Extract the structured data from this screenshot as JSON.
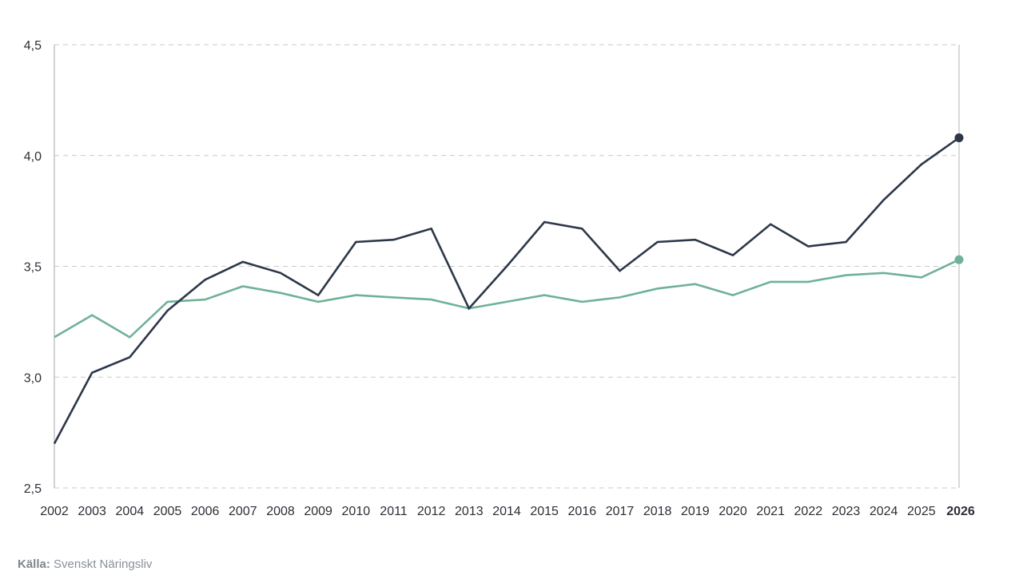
{
  "source": {
    "label": "Källa:",
    "text": "Svenskt Näringsliv"
  },
  "colors": {
    "series_a": "#2c3748",
    "series_b": "#6fb298",
    "grid": "#c9c9c9",
    "axis": "#b5b5b5",
    "text": "#2b2f36"
  },
  "chart_data": {
    "type": "line",
    "ylim": [
      2.5,
      4.5
    ],
    "yticks": [
      "2,5",
      "3,0",
      "3,5",
      "4,0",
      "4,5"
    ],
    "ytick_values": [
      2.5,
      3.0,
      3.5,
      4.0,
      4.5
    ],
    "grid": true,
    "categories": [
      "2002",
      "2003",
      "2004",
      "2005",
      "2006",
      "2007",
      "2008",
      "2009",
      "2010",
      "2011",
      "2012",
      "2013",
      "2014",
      "2015",
      "2016",
      "2017",
      "2018",
      "2019",
      "2020",
      "2021",
      "2022",
      "2023",
      "2024",
      "2025",
      "2026"
    ],
    "highlight_category": "2026",
    "series": [
      {
        "color": "#2c3748",
        "end_marker": true,
        "values": [
          2.7,
          3.02,
          3.09,
          3.3,
          3.44,
          3.52,
          3.47,
          3.37,
          3.61,
          3.62,
          3.67,
          3.31,
          3.5,
          3.7,
          3.67,
          3.48,
          3.61,
          3.62,
          3.55,
          3.69,
          3.59,
          3.61,
          3.8,
          3.96,
          4.08
        ]
      },
      {
        "color": "#6fb298",
        "end_marker": true,
        "values": [
          3.18,
          3.28,
          3.18,
          3.34,
          3.35,
          3.41,
          3.38,
          3.34,
          3.37,
          3.36,
          3.35,
          3.31,
          3.34,
          3.37,
          3.34,
          3.36,
          3.4,
          3.42,
          3.37,
          3.43,
          3.43,
          3.46,
          3.47,
          3.45,
          3.53
        ]
      }
    ]
  }
}
